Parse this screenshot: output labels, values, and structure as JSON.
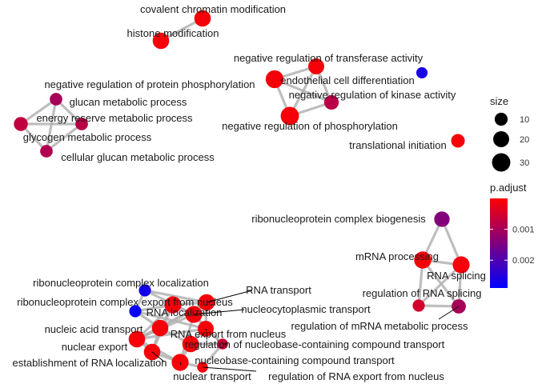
{
  "chart_data": {
    "type": "network",
    "title": "",
    "nodes": [
      {
        "id": "covalent_chromatin",
        "label": "covalent chromatin modification",
        "size": 22,
        "p_adjust": 0.0001
      },
      {
        "id": "histone_mod",
        "label": "histone modification",
        "size": 22,
        "p_adjust": 0.0001
      },
      {
        "id": "neg_transferase",
        "label": "negative regulation of transferase activity",
        "size": 20,
        "p_adjust": 0.0001
      },
      {
        "id": "endothelial",
        "label": "endothelial cell differentiation",
        "size": 6,
        "p_adjust": 0.0026
      },
      {
        "id": "neg_prot_phos",
        "label": "negative regulation of protein phosphorylation",
        "size": 28,
        "p_adjust": 0.0001
      },
      {
        "id": "neg_kinase",
        "label": "negative regulation of kinase activity",
        "size": 15,
        "p_adjust": 0.0008
      },
      {
        "id": "neg_phos",
        "label": "negative regulation of phosphorylation",
        "size": 30,
        "p_adjust": 0.0001
      },
      {
        "id": "glucan_meta",
        "label": "glucan metabolic process",
        "size": 9,
        "p_adjust": 0.001
      },
      {
        "id": "energy_reserve",
        "label": "energy reserve metabolic process",
        "size": 13,
        "p_adjust": 0.0007
      },
      {
        "id": "glycogen_meta",
        "label": "glycogen metabolic process",
        "size": 9,
        "p_adjust": 0.0008
      },
      {
        "id": "cellular_glucan",
        "label": "cellular glucan metabolic process",
        "size": 9,
        "p_adjust": 0.0009
      },
      {
        "id": "translational_init",
        "label": "translational initiation",
        "size": 12,
        "p_adjust": 0.0001
      },
      {
        "id": "rnp_biogenesis",
        "label": "ribonucleoprotein complex biogenesis",
        "size": 18,
        "p_adjust": 0.0014
      },
      {
        "id": "mrna_processing",
        "label": "mRNA processing",
        "size": 25,
        "p_adjust": 0.0001
      },
      {
        "id": "rna_splicing",
        "label": "RNA splicing",
        "size": 24,
        "p_adjust": 0.0001
      },
      {
        "id": "reg_rna_splicing",
        "label": "regulation of RNA splicing",
        "size": 8,
        "p_adjust": 0.0005
      },
      {
        "id": "reg_mrna_meta",
        "label": "regulation of mRNA metabolic process",
        "size": 14,
        "p_adjust": 0.001
      },
      {
        "id": "rnp_localization",
        "label": "ribonucleoprotein complex localization",
        "size": 8,
        "p_adjust": 0.0027
      },
      {
        "id": "rnp_export",
        "label": "ribonucleoprotein complex export from nucleus",
        "size": 8,
        "p_adjust": 0.0028
      },
      {
        "id": "rna_transport",
        "label": "RNA transport",
        "size": 22,
        "p_adjust": 0.0001
      },
      {
        "id": "rna_localization",
        "label": "RNA localization",
        "size": 24,
        "p_adjust": 0.0001
      },
      {
        "id": "nucleocyto",
        "label": "nucleocytoplasmic transport",
        "size": 24,
        "p_adjust": 0.0001
      },
      {
        "id": "nucleic_acid_transport",
        "label": "nucleic acid transport",
        "size": 22,
        "p_adjust": 0.0001
      },
      {
        "id": "rna_export",
        "label": "RNA export from nucleus",
        "size": 20,
        "p_adjust": 0.0001
      },
      {
        "id": "nuclear_export",
        "label": "nuclear export",
        "size": 22,
        "p_adjust": 0.0001
      },
      {
        "id": "reg_nucleobase_transport",
        "label": "regulation of nucleobase-containing compound transport",
        "size": 5,
        "p_adjust": 0.0006
      },
      {
        "id": "nucleobase_transport",
        "label": "nucleobase-containing compound transport",
        "size": 22,
        "p_adjust": 0.0001
      },
      {
        "id": "rna_loc_establish",
        "label": "establishment of RNA localization",
        "size": 22,
        "p_adjust": 0.0001
      },
      {
        "id": "nuclear_transport",
        "label": "nuclear transport",
        "size": 24,
        "p_adjust": 0.0001
      },
      {
        "id": "reg_rna_export",
        "label": "regulation of RNA export from nucleus",
        "size": 5,
        "p_adjust": 0.0001
      }
    ],
    "edges": [
      [
        "covalent_chromatin",
        "histone_mod"
      ],
      [
        "neg_transferase",
        "neg_prot_phos"
      ],
      [
        "neg_transferase",
        "neg_kinase"
      ],
      [
        "neg_transferase",
        "neg_phos"
      ],
      [
        "neg_prot_phos",
        "neg_kinase"
      ],
      [
        "neg_prot_phos",
        "neg_phos"
      ],
      [
        "neg_kinase",
        "neg_phos"
      ],
      [
        "glucan_meta",
        "energy_reserve"
      ],
      [
        "glucan_meta",
        "glycogen_meta"
      ],
      [
        "glucan_meta",
        "cellular_glucan"
      ],
      [
        "energy_reserve",
        "glycogen_meta"
      ],
      [
        "energy_reserve",
        "cellular_glucan"
      ],
      [
        "glycogen_meta",
        "cellular_glucan"
      ],
      [
        "rnp_biogenesis",
        "mrna_processing"
      ],
      [
        "rnp_biogenesis",
        "rna_splicing"
      ],
      [
        "mrna_processing",
        "rna_splicing"
      ],
      [
        "mrna_processing",
        "reg_rna_splicing"
      ],
      [
        "mrna_processing",
        "reg_mrna_meta"
      ],
      [
        "rna_splicing",
        "reg_rna_splicing"
      ],
      [
        "rna_splicing",
        "reg_mrna_meta"
      ],
      [
        "reg_rna_splicing",
        "reg_mrna_meta"
      ],
      [
        "rnp_localization",
        "rnp_export"
      ],
      [
        "rnp_localization",
        "rna_transport"
      ],
      [
        "rnp_localization",
        "nucleocyto"
      ],
      [
        "rnp_export",
        "rna_localization"
      ],
      [
        "rnp_export",
        "nucleic_acid_transport"
      ],
      [
        "rnp_export",
        "rna_export"
      ],
      [
        "rna_transport",
        "rna_localization"
      ],
      [
        "rna_transport",
        "nucleocyto"
      ],
      [
        "rna_transport",
        "nucleic_acid_transport"
      ],
      [
        "rna_transport",
        "rna_export"
      ],
      [
        "rna_transport",
        "nuclear_export"
      ],
      [
        "rna_localization",
        "nucleocyto"
      ],
      [
        "rna_localization",
        "nucleic_acid_transport"
      ],
      [
        "rna_localization",
        "nuclear_export"
      ],
      [
        "rna_localization",
        "rna_loc_establish"
      ],
      [
        "nucleocyto",
        "rna_export"
      ],
      [
        "nucleocyto",
        "nuclear_export"
      ],
      [
        "nucleocyto",
        "nuclear_transport"
      ],
      [
        "nucleocyto",
        "reg_nucleobase_transport"
      ],
      [
        "nucleic_acid_transport",
        "nuclear_export"
      ],
      [
        "nucleic_acid_transport",
        "rna_loc_establish"
      ],
      [
        "nucleic_acid_transport",
        "nucleobase_transport"
      ],
      [
        "rna_export",
        "nuclear_export"
      ],
      [
        "rna_export",
        "nucleobase_transport"
      ],
      [
        "rna_export",
        "reg_nucleobase_transport"
      ],
      [
        "nuclear_export",
        "rna_loc_establish"
      ],
      [
        "nuclear_export",
        "nuclear_transport"
      ],
      [
        "nucleobase_transport",
        "nuclear_transport"
      ],
      [
        "nucleobase_transport",
        "reg_nucleobase_transport"
      ],
      [
        "rna_loc_establish",
        "nuclear_transport"
      ],
      [
        "nuclear_transport",
        "reg_rna_export"
      ],
      [
        "reg_nucleobase_transport",
        "reg_rna_export"
      ]
    ],
    "size_legend": {
      "title": "size",
      "values": [
        10,
        20,
        30
      ]
    },
    "color_legend": {
      "title": "p.adjust",
      "ticks": [
        0.001,
        0.002
      ],
      "tick_labels": [
        "0.001",
        "0.002"
      ],
      "range": [
        0.0,
        0.0029
      ],
      "low_color": "#ff0000",
      "high_color": "#0000ff"
    },
    "edge_color": "#b3b3b3"
  }
}
